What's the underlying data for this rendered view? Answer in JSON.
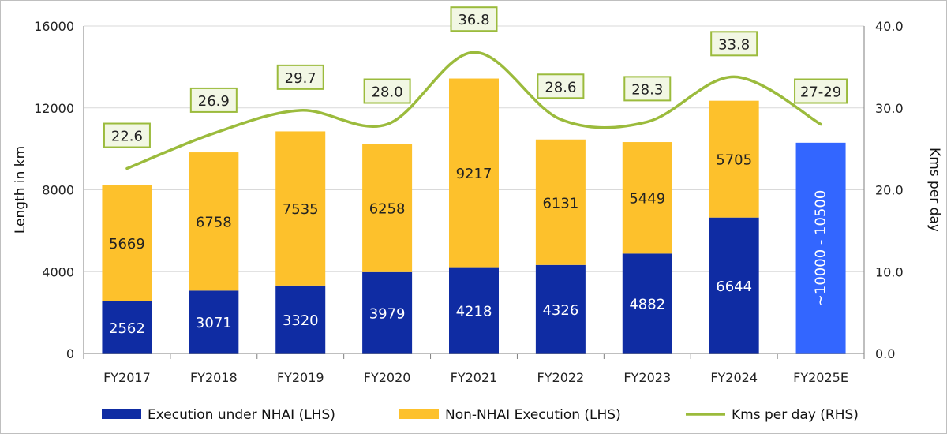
{
  "chart_data": {
    "type": "bar",
    "stacked": true,
    "categories": [
      "FY2017",
      "FY2018",
      "FY2019",
      "FY2020",
      "FY2021",
      "FY2022",
      "FY2023",
      "FY2024",
      "FY2025E"
    ],
    "series": [
      {
        "name": "Execution under NHAI (LHS)",
        "axis": "left",
        "color": "#0f2ca3",
        "values": [
          2562,
          3071,
          3320,
          3979,
          4218,
          4326,
          4882,
          6644,
          null
        ],
        "labels": [
          "2562",
          "3071",
          "3320",
          "3979",
          "4218",
          "4326",
          "4882",
          "6644",
          ""
        ]
      },
      {
        "name": "Non-NHAI Execution (LHS)",
        "axis": "left",
        "color": "#fdc12c",
        "values": [
          5669,
          6758,
          7535,
          6258,
          9217,
          6131,
          5449,
          5705,
          null
        ],
        "labels": [
          "5669",
          "6758",
          "7535",
          "6258",
          "9217",
          "6131",
          "5449",
          "5705",
          ""
        ]
      }
    ],
    "estimate_bar": {
      "category": "FY2025E",
      "range": [
        10000,
        10500
      ],
      "label": "~10000 - 10500",
      "color": "#3366ff"
    },
    "line_series": {
      "name": "Kms per day (RHS)",
      "axis": "right",
      "color": "#9bbb3c",
      "values": [
        22.6,
        26.9,
        29.7,
        28.0,
        36.8,
        28.6,
        28.3,
        33.8,
        28
      ],
      "labels": [
        "22.6",
        "26.9",
        "29.7",
        "28.0",
        "36.8",
        "28.6",
        "28.3",
        "33.8",
        "27-29"
      ]
    },
    "ylabel": "Length in km",
    "y2label": "Kms per day",
    "ylim": [
      0,
      16000
    ],
    "y2lim": [
      0,
      40
    ],
    "yticks": [
      "0",
      "4000",
      "8000",
      "12000",
      "16000"
    ],
    "y2ticks": [
      "0.0",
      "10.0",
      "20.0",
      "30.0",
      "40.0"
    ],
    "grid": true,
    "legend_position": "bottom",
    "colors": {
      "grid": "#d9d9d9",
      "label_box_border": "#9bbb3c",
      "label_box_fill": "#f2f7e4",
      "label_on_dark": "#ffffff",
      "label_on_light": "#222222"
    }
  }
}
